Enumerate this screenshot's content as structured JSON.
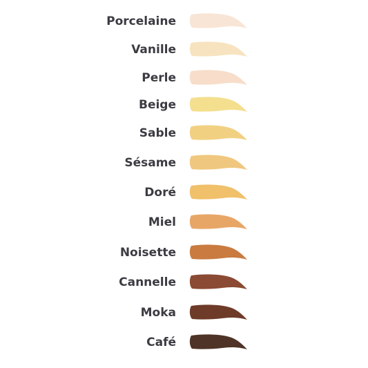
{
  "shades": [
    {
      "name": "Porcelaine",
      "color": "#f8e5d6"
    },
    {
      "name": "Vanille",
      "color": "#f7e3bf"
    },
    {
      "name": "Perle",
      "color": "#f7ddca"
    },
    {
      "name": "Beige",
      "color": "#f4df8f"
    },
    {
      "name": "Sable",
      "color": "#f2d082"
    },
    {
      "name": "Sésame",
      "color": "#f0c77e"
    },
    {
      "name": "Doré",
      "color": "#f0c06a"
    },
    {
      "name": "Miel",
      "color": "#e8a666"
    },
    {
      "name": "Noisette",
      "color": "#c97b40"
    },
    {
      "name": "Cannelle",
      "color": "#8b4a33"
    },
    {
      "name": "Moka",
      "color": "#6e3b29"
    },
    {
      "name": "Café",
      "color": "#4f3327"
    }
  ]
}
